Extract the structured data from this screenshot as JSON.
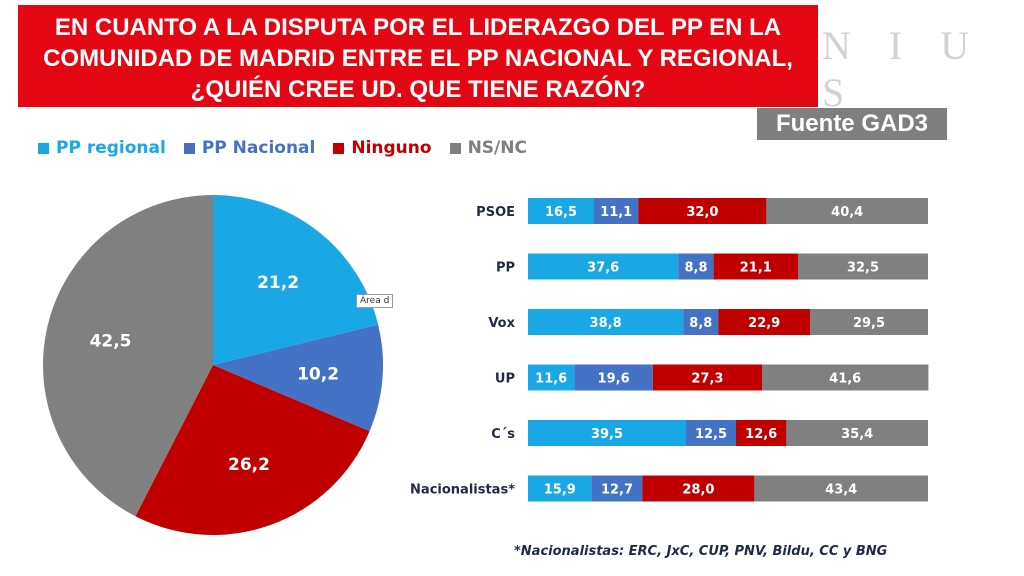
{
  "title": {
    "line1": "EN CUANTO A LA DISPUTA POR EL LIDERAZGO DEL PP EN LA",
    "line2": "COMUNIDAD DE MADRID ENTRE EL PP NACIONAL Y REGIONAL,",
    "line3": "¿QUIÉN CREE UD. QUE TIENE RAZÓN?"
  },
  "brand": "N I U S",
  "source": "Fuente GAD3",
  "area_tag": "Área d",
  "footnote": "*Nacionalistas: ERC, JxC, CUP, PNV, Bildu, CC y BNG",
  "colors": {
    "title_bg": "#e30613",
    "pp_regional": "#1aa7e6",
    "pp_nacional": "#4472c4",
    "ninguno": "#c00000",
    "nsnc": "#808080"
  },
  "chart_data": [
    {
      "type": "pie",
      "labels": [
        "PP regional",
        "PP Nacional",
        "Ninguno",
        "NS/NC"
      ],
      "values": [
        21.2,
        10.2,
        26.2,
        42.5
      ],
      "value_labels": [
        "21,2",
        "10,2",
        "26,2",
        "42,5"
      ],
      "legend": "top-left"
    },
    {
      "type": "bar",
      "stacked": true,
      "orientation": "horizontal",
      "categories": [
        "PSOE",
        "PP",
        "Vox",
        "UP",
        "C´s",
        "Nacionalistas*"
      ],
      "series": [
        {
          "name": "PP regional",
          "values": [
            16.5,
            37.6,
            38.8,
            11.6,
            39.5,
            15.9
          ],
          "labels": [
            "16,5",
            "37,6",
            "38,8",
            "11,6",
            "39,5",
            "15,9"
          ]
        },
        {
          "name": "PP Nacional",
          "values": [
            11.1,
            8.8,
            8.8,
            19.6,
            12.5,
            12.7
          ],
          "labels": [
            "11,1",
            "8,8",
            "8,8",
            "19,6",
            "12,5",
            "12,7"
          ]
        },
        {
          "name": "Ninguno",
          "values": [
            32.0,
            21.1,
            22.9,
            27.3,
            12.6,
            28.0
          ],
          "labels": [
            "32,0",
            "21,1",
            "22,9",
            "27,3",
            "12,6",
            "28,0"
          ]
        },
        {
          "name": "NS/NC",
          "values": [
            40.4,
            32.5,
            29.5,
            41.6,
            35.4,
            43.4
          ],
          "labels": [
            "40,4",
            "32,5",
            "29,5",
            "41,6",
            "35,4",
            "43,4"
          ]
        }
      ],
      "xlim": [
        0,
        100
      ]
    }
  ]
}
